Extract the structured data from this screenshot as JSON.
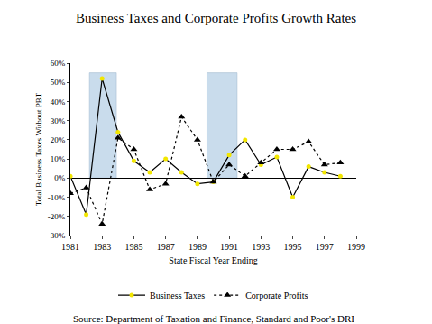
{
  "chart_data": {
    "type": "line",
    "title": "Business Taxes and Corporate Profits Growth Rates",
    "x_label": "State Fiscal Year Ending",
    "y_label": "Total Business Taxes Without PBT",
    "caption": "Source: Department of Taxation and Finance, Standard and Poor's DRI",
    "x": [
      1981,
      1982,
      1983,
      1984,
      1985,
      1986,
      1987,
      1988,
      1989,
      1990,
      1991,
      1992,
      1993,
      1994,
      1995,
      1996,
      1997,
      1998
    ],
    "series": [
      {
        "name": "Business Taxes",
        "color": "#000000",
        "marker": "circle",
        "line_style": "solid",
        "values": [
          1,
          -19,
          52,
          24,
          9,
          3,
          10,
          3,
          -3,
          -2,
          12,
          20,
          7,
          11,
          -10,
          6,
          3,
          1
        ]
      },
      {
        "name": "Corporate Profits",
        "color": "#000000",
        "marker": "triangle-up",
        "line_style": "dot",
        "values": [
          -8,
          -5,
          -24,
          21,
          15,
          -6,
          -3,
          32,
          20,
          -2,
          7,
          1,
          8,
          15,
          15,
          19,
          7,
          8
        ]
      }
    ],
    "bands": [
      {
        "x0": 1982.2,
        "x1": 1983.9,
        "y0": 0,
        "y1": 55
      },
      {
        "x0": 1989.6,
        "x1": 1991.5,
        "y0": 0,
        "y1": 55
      }
    ],
    "xlim": [
      1981,
      1999
    ],
    "xticks": [
      1981,
      1983,
      1985,
      1987,
      1989,
      1991,
      1993,
      1995,
      1997,
      1999
    ],
    "ylim": [
      -30,
      60
    ],
    "yticks": [
      {
        "value": -30,
        "label": "-30%"
      },
      {
        "value": -20,
        "label": "-20%"
      },
      {
        "value": -10,
        "label": "-10%"
      },
      {
        "value": 0,
        "label": "0%"
      },
      {
        "value": 10,
        "label": "10%"
      },
      {
        "value": 20,
        "label": "20%"
      },
      {
        "value": 30,
        "label": "30%"
      },
      {
        "value": 40,
        "label": "40%"
      },
      {
        "value": 50,
        "label": "50%"
      },
      {
        "value": 60,
        "label": "60%"
      }
    ],
    "grid": false,
    "legend": "bottom"
  }
}
